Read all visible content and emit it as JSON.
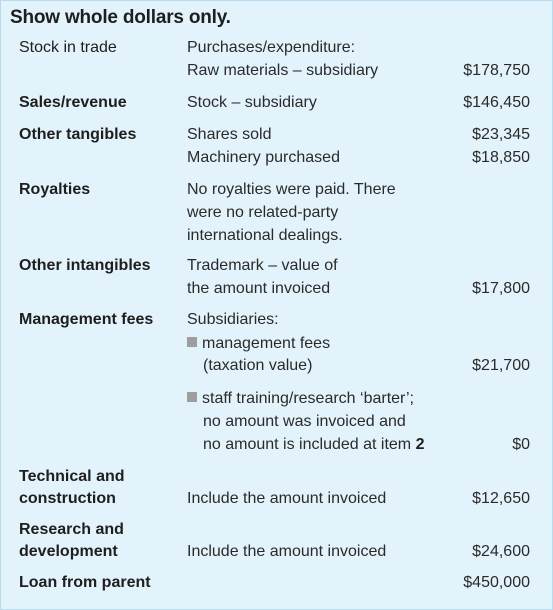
{
  "title": "Show whole dollars only.",
  "stock_in_trade": {
    "label": "Stock in trade",
    "line1": "Purchases/expenditure:",
    "line2": "Raw materials – subsidiary",
    "amount": "$178,750"
  },
  "sales_revenue": {
    "label": "Sales/revenue",
    "desc": "Stock – subsidiary",
    "amount": "$146,450"
  },
  "other_tangibles": {
    "label": "Other tangibles",
    "line1": "Shares sold",
    "amount1": "$23,345",
    "line2": "Machinery purchased",
    "amount2": "$18,850"
  },
  "royalties": {
    "label": "Royalties",
    "line1": "No royalties were paid. There",
    "line2": "were no related-party",
    "line3": "international dealings."
  },
  "other_intangibles": {
    "label": "Other intangibles",
    "line1": "Trademark – value of",
    "line2": "the amount invoiced",
    "amount": "$17,800"
  },
  "management_fees": {
    "label": "Management fees",
    "heading": "Subsidiaries:",
    "b1_line1": "management fees",
    "b1_line2": "(taxation value)",
    "b1_amount": "$21,700",
    "b2_line1": "staff training/research ‘barter’;",
    "b2_line2": "no amount was invoiced and",
    "b2_line3_prefix": "no amount is included at item ",
    "b2_item": "2",
    "b2_amount": "$0"
  },
  "technical": {
    "label_line1": "Technical and",
    "label_line2": "construction",
    "desc": "Include the amount invoiced",
    "amount": "$12,650"
  },
  "research": {
    "label_line1": "Research and",
    "label_line2": "development",
    "desc": "Include the amount invoiced",
    "amount": "$24,600"
  },
  "loan": {
    "label": "Loan from parent",
    "amount": "$450,000"
  }
}
